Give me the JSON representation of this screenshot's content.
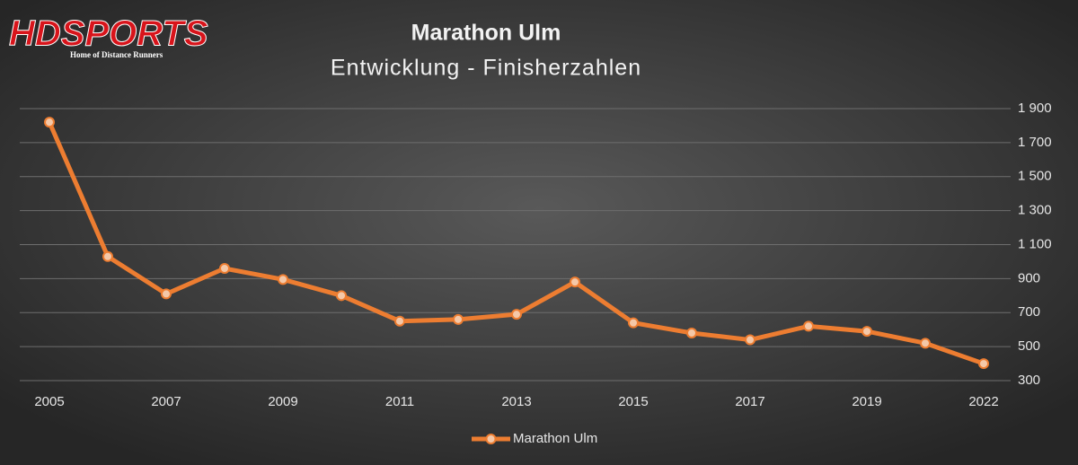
{
  "logo": {
    "brand": "HDSPORTS",
    "tagline": "Home of Distance Runners"
  },
  "chart_data": {
    "type": "line",
    "title": "Marathon Ulm",
    "subtitle": "Entwicklung - Finisherzahlen",
    "categories": [
      "2005",
      null,
      "2007",
      null,
      "2009",
      null,
      "2011",
      null,
      "2013",
      null,
      "2015",
      null,
      "2017",
      null,
      "2019",
      null,
      "2022"
    ],
    "series": [
      {
        "name": "Marathon Ulm",
        "color": "#ed7d31",
        "values": [
          1820,
          1030,
          810,
          960,
          895,
          800,
          650,
          660,
          690,
          880,
          640,
          580,
          540,
          620,
          590,
          520,
          400
        ]
      }
    ],
    "ylim": [
      300,
      1900
    ],
    "yticks": [
      300,
      500,
      700,
      900,
      {
        "value": 1100,
        "label": "1 100"
      },
      {
        "value": 1300,
        "label": "1 300"
      },
      {
        "value": 1500,
        "label": "1 500"
      },
      {
        "value": 1700,
        "label": "1 700"
      },
      {
        "value": 1900,
        "label": "1 900"
      }
    ],
    "grid": true,
    "legend": "bottom"
  }
}
